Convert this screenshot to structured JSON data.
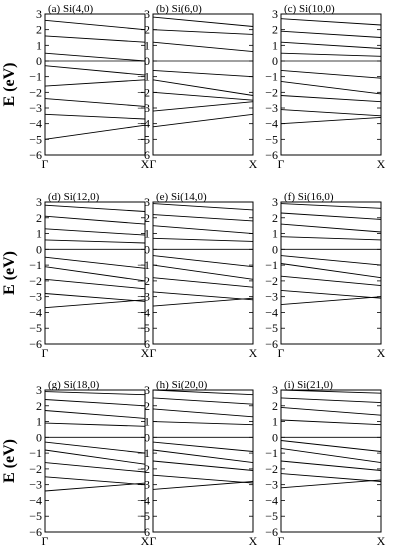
{
  "figure": {
    "ylabel": "E (eV)",
    "xtick_labels": [
      "Γ",
      "X"
    ],
    "ytick_values": [
      3,
      2,
      1,
      0,
      -1,
      -2,
      -3,
      -4,
      -5,
      -6
    ]
  },
  "chart_data": [
    {
      "type": "line",
      "title": "(a) Si(4,0)",
      "ylabel": "E (eV)",
      "x_labels": [
        "Γ",
        "X"
      ],
      "ylim": [
        -6,
        3
      ],
      "fermi_level": 0,
      "series": [
        {
          "x": [
            0,
            1
          ],
          "values": [
            2.6,
            2.0
          ]
        },
        {
          "x": [
            0,
            1
          ],
          "values": [
            1.6,
            1.2
          ]
        },
        {
          "x": [
            0,
            1
          ],
          "values": [
            0.5,
            0.0
          ]
        },
        {
          "x": [
            0,
            1
          ],
          "values": [
            -0.3,
            -0.9
          ]
        },
        {
          "x": [
            0,
            1
          ],
          "values": [
            -1.6,
            -1.2
          ]
        },
        {
          "x": [
            0,
            1
          ],
          "values": [
            -2.4,
            -2.9
          ]
        },
        {
          "x": [
            0,
            1
          ],
          "values": [
            -3.4,
            -3.7
          ]
        },
        {
          "x": [
            0,
            1
          ],
          "values": [
            -5.0,
            -4.1
          ]
        }
      ]
    },
    {
      "type": "line",
      "title": "(b) Si(6,0)",
      "ylabel": "E (eV)",
      "x_labels": [
        "Γ",
        "X"
      ],
      "ylim": [
        -6,
        3
      ],
      "fermi_level": 0,
      "series": [
        {
          "x": [
            0,
            1
          ],
          "values": [
            2.8,
            2.2
          ]
        },
        {
          "x": [
            0,
            1
          ],
          "values": [
            2.0,
            1.7
          ]
        },
        {
          "x": [
            0,
            1
          ],
          "values": [
            1.2,
            0.6
          ]
        },
        {
          "x": [
            0,
            1
          ],
          "values": [
            -0.6,
            -1.0
          ]
        },
        {
          "x": [
            0,
            1
          ],
          "values": [
            -1.2,
            -2.2
          ]
        },
        {
          "x": [
            0,
            1
          ],
          "values": [
            -2.0,
            -2.5
          ]
        },
        {
          "x": [
            0,
            1
          ],
          "values": [
            -3.2,
            -2.6
          ]
        },
        {
          "x": [
            0,
            1
          ],
          "values": [
            -4.2,
            -3.4
          ]
        }
      ]
    },
    {
      "type": "line",
      "title": "(c) Si(10,0)",
      "ylabel": "E (eV)",
      "x_labels": [
        "Γ",
        "X"
      ],
      "ylim": [
        -6,
        3
      ],
      "fermi_level": 0,
      "series": [
        {
          "x": [
            0,
            1
          ],
          "values": [
            2.7,
            2.3
          ]
        },
        {
          "x": [
            0,
            1
          ],
          "values": [
            1.9,
            1.5
          ]
        },
        {
          "x": [
            0,
            1
          ],
          "values": [
            1.2,
            0.8
          ]
        },
        {
          "x": [
            0,
            1
          ],
          "values": [
            0.5,
            0.3
          ]
        },
        {
          "x": [
            0,
            1
          ],
          "values": [
            -0.6,
            -1.1
          ]
        },
        {
          "x": [
            0,
            1
          ],
          "values": [
            -1.3,
            -2.1
          ]
        },
        {
          "x": [
            0,
            1
          ],
          "values": [
            -2.2,
            -2.6
          ]
        },
        {
          "x": [
            0,
            1
          ],
          "values": [
            -3.1,
            -3.5
          ]
        },
        {
          "x": [
            0,
            1
          ],
          "values": [
            -4.0,
            -3.6
          ]
        }
      ]
    },
    {
      "type": "line",
      "title": "(d) Si(12,0)",
      "ylabel": "E (eV)",
      "x_labels": [
        "Γ",
        "X"
      ],
      "ylim": [
        -6,
        3
      ],
      "fermi_level": 0,
      "series": [
        {
          "x": [
            0,
            1
          ],
          "values": [
            2.8,
            2.4
          ]
        },
        {
          "x": [
            0,
            1
          ],
          "values": [
            2.1,
            1.6
          ]
        },
        {
          "x": [
            0,
            1
          ],
          "values": [
            1.3,
            0.9
          ]
        },
        {
          "x": [
            0,
            1
          ],
          "values": [
            0.6,
            0.4
          ]
        },
        {
          "x": [
            0,
            1
          ],
          "values": [
            -0.5,
            -1.2
          ]
        },
        {
          "x": [
            0,
            1
          ],
          "values": [
            -1.1,
            -2.0
          ]
        },
        {
          "x": [
            0,
            1
          ],
          "values": [
            -1.9,
            -2.5
          ]
        },
        {
          "x": [
            0,
            1
          ],
          "values": [
            -2.8,
            -3.3
          ]
        },
        {
          "x": [
            0,
            1
          ],
          "values": [
            -3.7,
            -3.2
          ]
        }
      ]
    },
    {
      "type": "line",
      "title": "(e) Si(14,0)",
      "ylabel": "E (eV)",
      "x_labels": [
        "Γ",
        "X"
      ],
      "ylim": [
        -6,
        3
      ],
      "fermi_level": 0,
      "series": [
        {
          "x": [
            0,
            1
          ],
          "values": [
            2.9,
            2.5
          ]
        },
        {
          "x": [
            0,
            1
          ],
          "values": [
            2.2,
            1.8
          ]
        },
        {
          "x": [
            0,
            1
          ],
          "values": [
            1.5,
            1.0
          ]
        },
        {
          "x": [
            0,
            1
          ],
          "values": [
            0.7,
            0.5
          ]
        },
        {
          "x": [
            0,
            1
          ],
          "values": [
            -0.4,
            -1.1
          ]
        },
        {
          "x": [
            0,
            1
          ],
          "values": [
            -1.0,
            -1.9
          ]
        },
        {
          "x": [
            0,
            1
          ],
          "values": [
            -1.8,
            -2.4
          ]
        },
        {
          "x": [
            0,
            1
          ],
          "values": [
            -2.7,
            -3.2
          ]
        },
        {
          "x": [
            0,
            1
          ],
          "values": [
            -3.6,
            -3.1
          ]
        }
      ]
    },
    {
      "type": "line",
      "title": "(f) Si(16,0)",
      "ylabel": "E (eV)",
      "x_labels": [
        "Γ",
        "X"
      ],
      "ylim": [
        -6,
        3
      ],
      "fermi_level": 0,
      "series": [
        {
          "x": [
            0,
            1
          ],
          "values": [
            2.9,
            2.6
          ]
        },
        {
          "x": [
            0,
            1
          ],
          "values": [
            2.3,
            1.9
          ]
        },
        {
          "x": [
            0,
            1
          ],
          "values": [
            1.6,
            1.1
          ]
        },
        {
          "x": [
            0,
            1
          ],
          "values": [
            0.8,
            0.6
          ]
        },
        {
          "x": [
            0,
            1
          ],
          "values": [
            -0.4,
            -1.0
          ]
        },
        {
          "x": [
            0,
            1
          ],
          "values": [
            -0.9,
            -1.8
          ]
        },
        {
          "x": [
            0,
            1
          ],
          "values": [
            -1.7,
            -2.3
          ]
        },
        {
          "x": [
            0,
            1
          ],
          "values": [
            -2.6,
            -3.1
          ]
        },
        {
          "x": [
            0,
            1
          ],
          "values": [
            -3.5,
            -3.0
          ]
        }
      ]
    },
    {
      "type": "line",
      "title": "(g) Si(18,0)",
      "ylabel": "E (eV)",
      "x_labels": [
        "Γ",
        "X"
      ],
      "ylim": [
        -6,
        3
      ],
      "fermi_level": 0,
      "series": [
        {
          "x": [
            0,
            1
          ],
          "values": [
            2.9,
            2.7
          ]
        },
        {
          "x": [
            0,
            1
          ],
          "values": [
            2.4,
            2.0
          ]
        },
        {
          "x": [
            0,
            1
          ],
          "values": [
            1.7,
            1.2
          ]
        },
        {
          "x": [
            0,
            1
          ],
          "values": [
            0.9,
            0.7
          ]
        },
        {
          "x": [
            0,
            1
          ],
          "values": [
            -0.3,
            -1.0
          ]
        },
        {
          "x": [
            0,
            1
          ],
          "values": [
            -0.8,
            -1.7
          ]
        },
        {
          "x": [
            0,
            1
          ],
          "values": [
            -1.6,
            -2.2
          ]
        },
        {
          "x": [
            0,
            1
          ],
          "values": [
            -2.5,
            -3.0
          ]
        },
        {
          "x": [
            0,
            1
          ],
          "values": [
            -3.4,
            -2.9
          ]
        }
      ]
    },
    {
      "type": "line",
      "title": "(h) Si(20,0)",
      "ylabel": "E (eV)",
      "x_labels": [
        "Γ",
        "X"
      ],
      "ylim": [
        -6,
        3
      ],
      "fermi_level": 0,
      "series": [
        {
          "x": [
            0,
            1
          ],
          "values": [
            3.0,
            2.7
          ]
        },
        {
          "x": [
            0,
            1
          ],
          "values": [
            2.5,
            2.1
          ]
        },
        {
          "x": [
            0,
            1
          ],
          "values": [
            1.8,
            1.3
          ]
        },
        {
          "x": [
            0,
            1
          ],
          "values": [
            1.0,
            0.8
          ]
        },
        {
          "x": [
            0,
            1
          ],
          "values": [
            -0.3,
            -0.9
          ]
        },
        {
          "x": [
            0,
            1
          ],
          "values": [
            -0.8,
            -1.6
          ]
        },
        {
          "x": [
            0,
            1
          ],
          "values": [
            -1.5,
            -2.1
          ]
        },
        {
          "x": [
            0,
            1
          ],
          "values": [
            -2.4,
            -2.9
          ]
        },
        {
          "x": [
            0,
            1
          ],
          "values": [
            -3.3,
            -2.8
          ]
        }
      ]
    },
    {
      "type": "line",
      "title": "(i) Si(21,0)",
      "ylabel": "E (eV)",
      "x_labels": [
        "Γ",
        "X"
      ],
      "ylim": [
        -6,
        3
      ],
      "fermi_level": 0,
      "series": [
        {
          "x": [
            0,
            1
          ],
          "values": [
            3.0,
            2.8
          ]
        },
        {
          "x": [
            0,
            1
          ],
          "values": [
            2.5,
            2.2
          ]
        },
        {
          "x": [
            0,
            1
          ],
          "values": [
            1.9,
            1.4
          ]
        },
        {
          "x": [
            0,
            1
          ],
          "values": [
            1.1,
            0.8
          ]
        },
        {
          "x": [
            0,
            1
          ],
          "values": [
            -0.2,
            -0.9
          ]
        },
        {
          "x": [
            0,
            1
          ],
          "values": [
            -0.7,
            -1.6
          ]
        },
        {
          "x": [
            0,
            1
          ],
          "values": [
            -1.5,
            -2.1
          ]
        },
        {
          "x": [
            0,
            1
          ],
          "values": [
            -2.3,
            -2.8
          ]
        },
        {
          "x": [
            0,
            1
          ],
          "values": [
            -3.2,
            -2.7
          ]
        }
      ]
    }
  ]
}
